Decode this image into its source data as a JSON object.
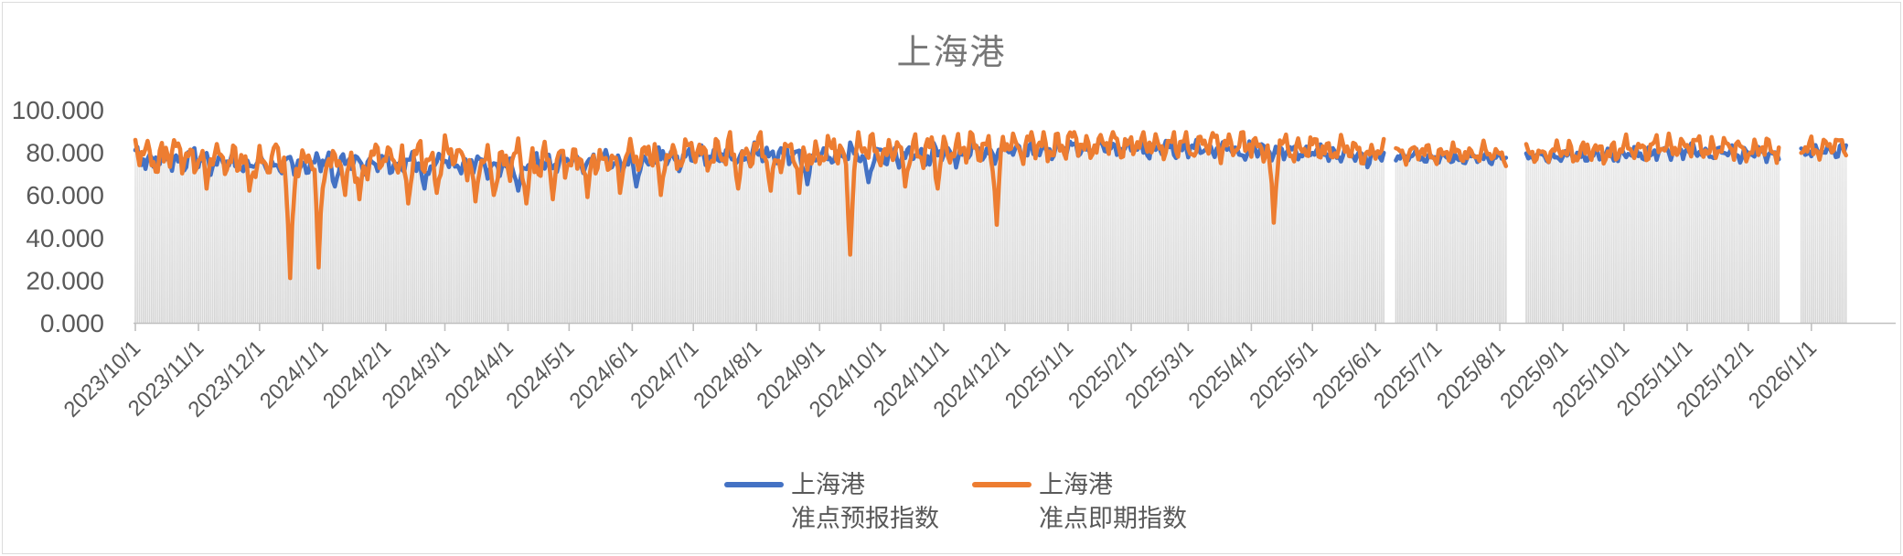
{
  "chart_data": {
    "type": "line",
    "title": "上海港",
    "title_color": "#767676",
    "legend_position": "bottom",
    "x_axis": {
      "tick_labels": [
        "2023/10/1",
        "2023/11/1",
        "2023/12/1",
        "2024/1/1",
        "2024/2/1",
        "2024/3/1",
        "2024/4/1",
        "2024/5/1",
        "2024/6/1",
        "2024/7/1",
        "2024/8/1",
        "2024/9/1",
        "2024/10/1",
        "2024/11/1",
        "2024/12/1",
        "2025/1/1",
        "2025/2/1",
        "2025/3/1",
        "2025/4/1",
        "2025/5/1",
        "2025/6/1",
        "2025/7/1",
        "2025/8/1",
        "2025/9/1",
        "2025/10/1",
        "2025/11/1",
        "2025/12/1",
        "2026/1/1"
      ],
      "tick_day_offsets": [
        0,
        31,
        61,
        92,
        123,
        152,
        183,
        213,
        244,
        274,
        305,
        336,
        366,
        397,
        427,
        458,
        489,
        517,
        548,
        578,
        609,
        639,
        670,
        701,
        731,
        762,
        792,
        823
      ],
      "label_color": "#595959",
      "axis_color": "#BFBFBF"
    },
    "y_axis": {
      "tick_labels": [
        "0.000",
        "20.000",
        "40.000",
        "60.000",
        "80.000",
        "100.000"
      ],
      "tick_values": [
        0,
        20,
        40,
        60,
        80,
        100
      ],
      "min": 0,
      "max": 100,
      "label_color": "#595959",
      "grid": "off"
    },
    "series": [
      {
        "name": "上海港 准点预报指数",
        "legend_lines": [
          "上海港",
          "准点预报指数"
        ],
        "color": "#4472C4"
      },
      {
        "name": "上海港 准点即期指数",
        "legend_lines": [
          "上海港",
          "准点即期指数"
        ],
        "color": "#ED7D31"
      }
    ],
    "background_columns": {
      "follows": "series_0",
      "top_color": "#EBEBEB",
      "bottom_color": "#D6D6D6"
    },
    "data_day_count": 841,
    "axis_day_count": 865,
    "gaps": [
      {
        "start_day": 614,
        "end_day": 618
      },
      {
        "start_day": 674,
        "end_day": 682
      },
      {
        "start_day": 808,
        "end_day": 817
      }
    ],
    "trend_keypoints": [
      [
        0,
        77.5
      ],
      [
        25,
        78
      ],
      [
        50,
        75.5
      ],
      [
        76,
        75
      ],
      [
        92,
        75.5
      ],
      [
        123,
        76
      ],
      [
        152,
        76
      ],
      [
        183,
        74.5
      ],
      [
        213,
        76.5
      ],
      [
        244,
        77
      ],
      [
        274,
        78.5
      ],
      [
        305,
        79
      ],
      [
        336,
        79
      ],
      [
        366,
        79.5
      ],
      [
        397,
        80
      ],
      [
        427,
        81.5
      ],
      [
        458,
        82.5
      ],
      [
        489,
        82.5
      ],
      [
        517,
        82.5
      ],
      [
        548,
        81.5
      ],
      [
        578,
        81
      ],
      [
        609,
        79
      ],
      [
        639,
        78.5
      ],
      [
        670,
        78
      ],
      [
        701,
        79
      ],
      [
        731,
        80
      ],
      [
        762,
        81.5
      ],
      [
        792,
        80
      ],
      [
        823,
        81
      ],
      [
        840,
        82
      ]
    ],
    "series_offsets": {
      "blue": -0.8,
      "orange": 1.2
    },
    "noise": {
      "seed": 42,
      "blue_waves": [
        [
          2.6,
          0.93,
          1.1
        ],
        [
          1.9,
          1.99,
          0.3
        ],
        [
          1.2,
          0.41,
          2.0
        ]
      ],
      "orange_waves": [
        [
          4.6,
          0.9,
          2.5
        ],
        [
          3.3,
          2.07,
          1.2
        ],
        [
          2.0,
          0.37,
          0.9
        ]
      ],
      "jitter_blue": 1.8,
      "jitter_orange": 2.5,
      "amp_zones": [
        [
          0,
          460,
          1.0
        ],
        [
          460,
          609,
          0.8
        ],
        [
          609,
          701,
          0.55
        ],
        [
          701,
          866,
          0.65
        ]
      ],
      "clamp_blue": [
        61.5,
        88.5
      ],
      "clamp_orange_early": [
        57,
        89.5
      ],
      "clamp_orange_late": [
        66,
        89.5
      ]
    },
    "orange_dip_events": [
      [
        35,
        63
      ],
      [
        56,
        62
      ],
      [
        76,
        21
      ],
      [
        90,
        26
      ],
      [
        103,
        60
      ],
      [
        110,
        58
      ],
      [
        134,
        56
      ],
      [
        148,
        61
      ],
      [
        167,
        57
      ],
      [
        176,
        60
      ],
      [
        192,
        56
      ],
      [
        205,
        58
      ],
      [
        222,
        59
      ],
      [
        238,
        61
      ],
      [
        258,
        60
      ],
      [
        296,
        63
      ],
      [
        312,
        62
      ],
      [
        326,
        61
      ],
      [
        351,
        32
      ],
      [
        378,
        64
      ],
      [
        394,
        63
      ],
      [
        423,
        46
      ],
      [
        559,
        47
      ]
    ],
    "blue_dip_events": [
      [
        98,
        64
      ],
      [
        142,
        63
      ],
      [
        188,
        62
      ],
      [
        246,
        64
      ],
      [
        330,
        65
      ],
      [
        360,
        66
      ]
    ]
  },
  "frame": {
    "border_color": "#DCDCDC",
    "background": "#FFFFFF"
  }
}
